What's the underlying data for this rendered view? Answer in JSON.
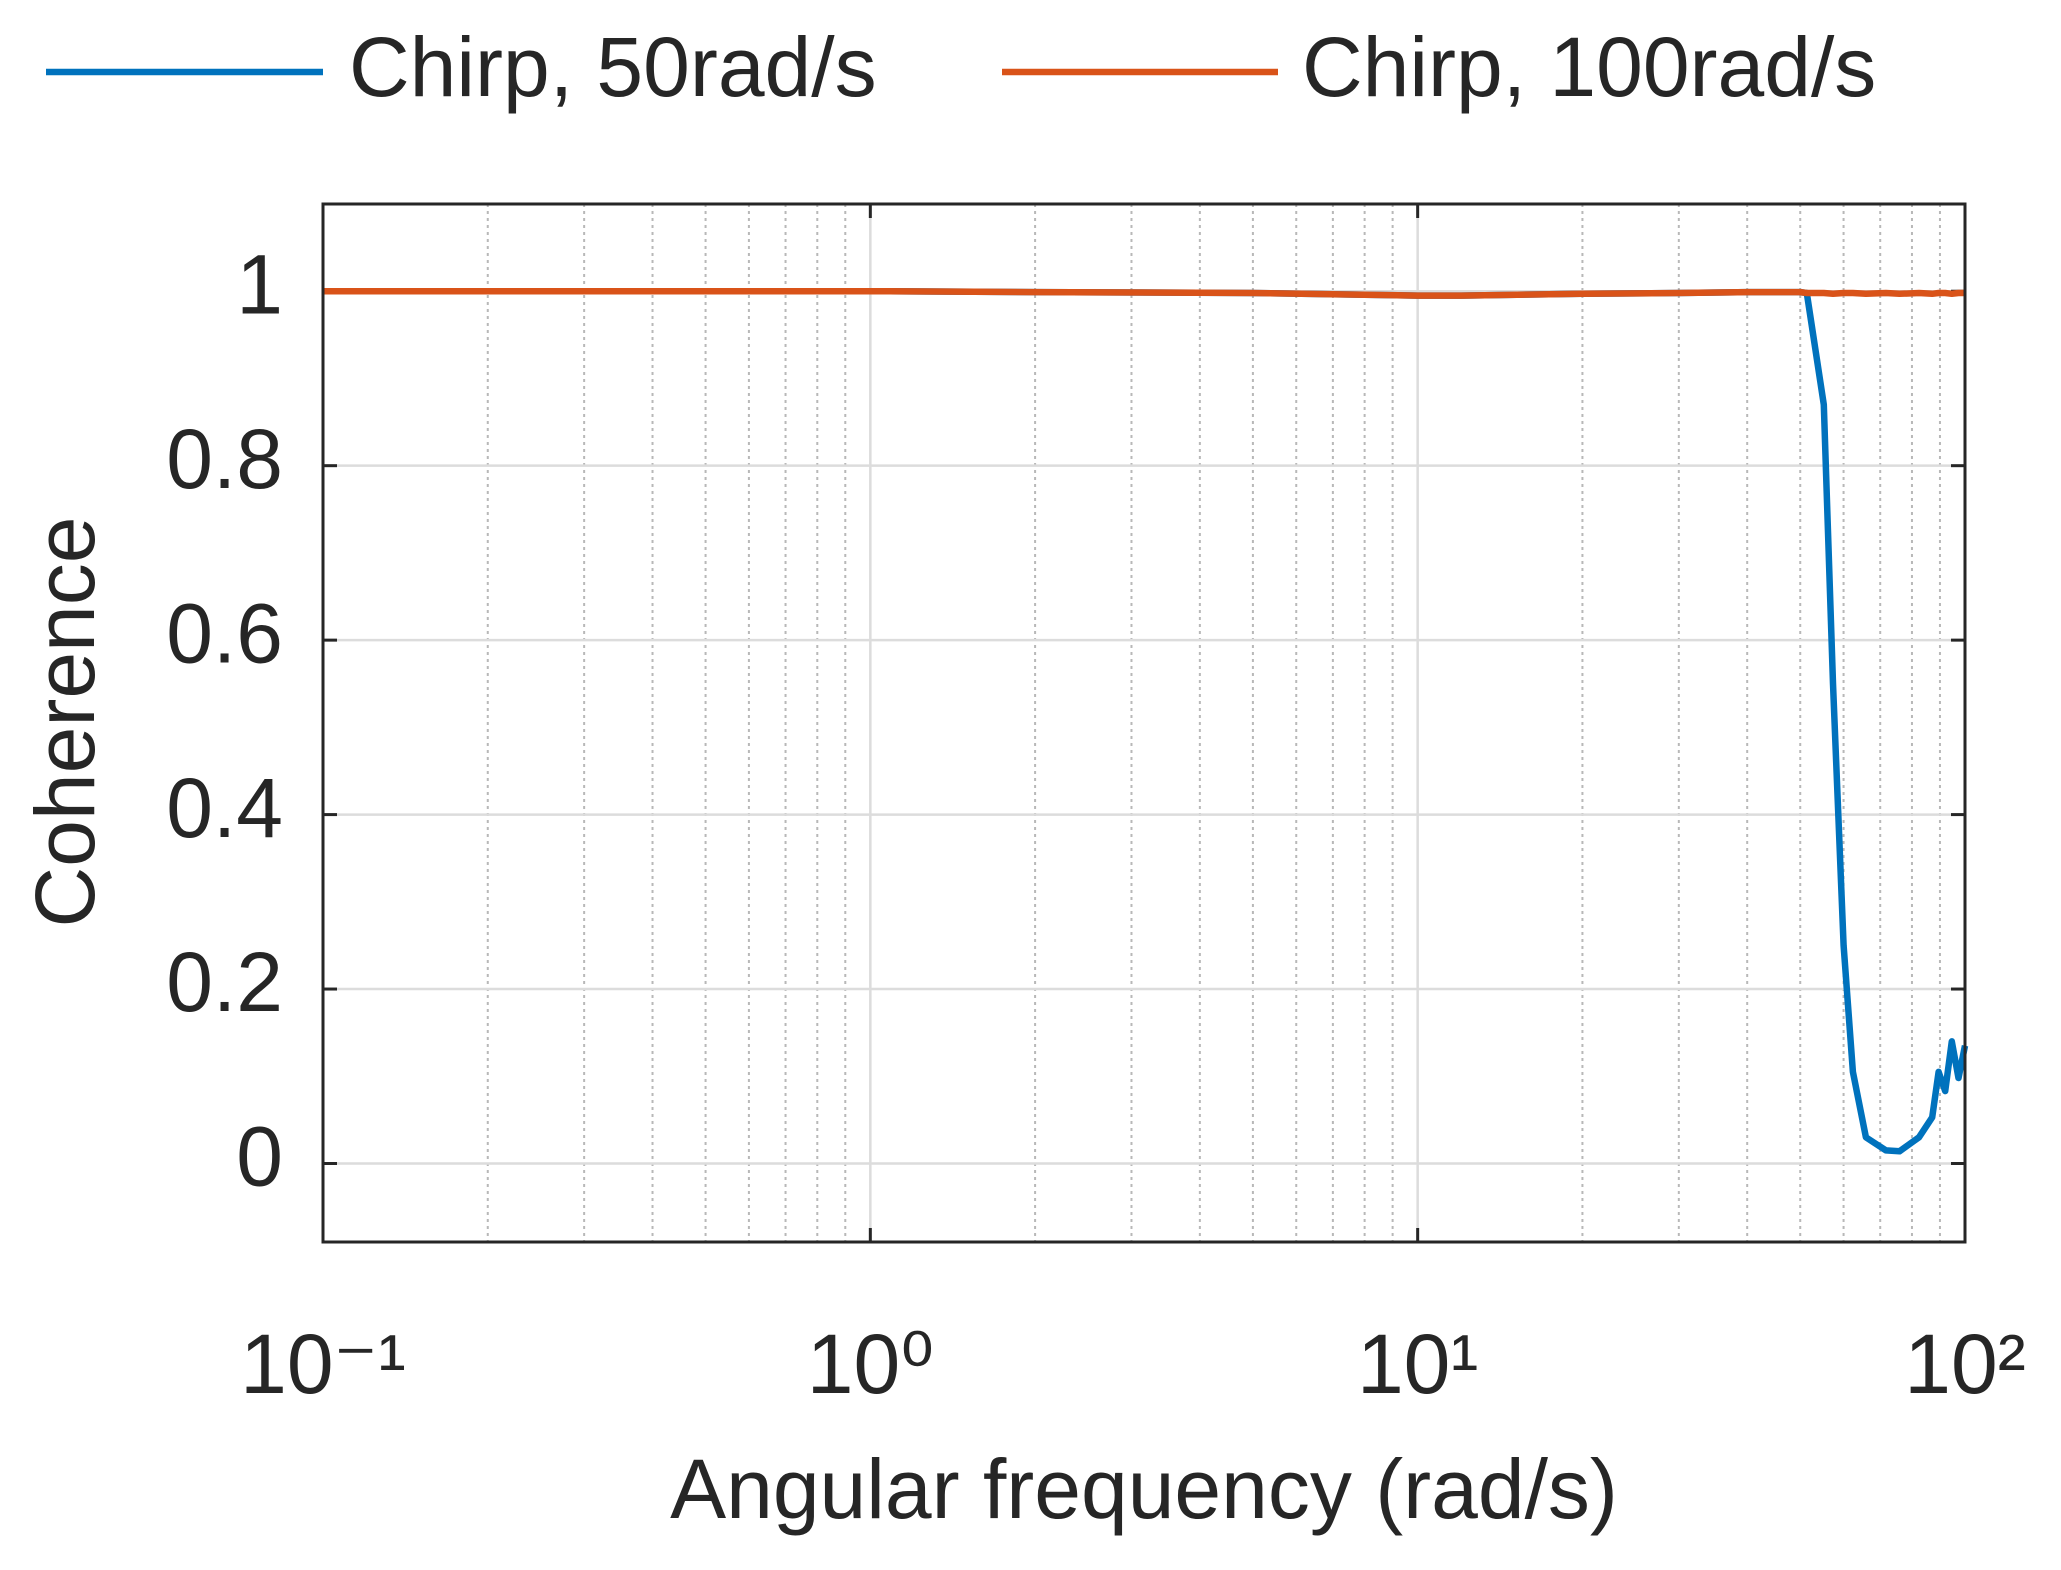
{
  "chart_data": {
    "type": "line",
    "xlabel": "Angular frequency (rad/s)",
    "ylabel": "Coherence",
    "x": [
      0.1,
      0.2,
      0.5,
      1,
      2,
      5,
      8,
      10,
      12,
      20,
      30,
      40,
      50,
      51.4,
      55.2,
      57.4,
      60,
      62.4,
      65.9,
      71.7,
      75.9,
      82.4,
      87.1,
      89.5,
      92,
      94.6,
      97.3,
      100
    ],
    "series": [
      {
        "name": "Chirp, 50rad/s",
        "color": "#0072bd",
        "values": [
          1,
          1,
          1,
          1,
          0.999,
          0.998,
          0.996,
          0.995,
          0.995,
          0.997,
          0.998,
          0.999,
          0.999,
          0.998,
          0.87,
          0.55,
          0.25,
          0.105,
          0.03,
          0.015,
          0.014,
          0.03,
          0.053,
          0.105,
          0.083,
          0.14,
          0.098,
          0.135
        ]
      },
      {
        "name": "Chirp, 100rad/s",
        "color": "#d95319",
        "values": [
          1,
          1,
          1,
          1,
          0.999,
          0.998,
          0.996,
          0.995,
          0.995,
          0.997,
          0.998,
          0.999,
          0.999,
          0.998,
          0.998,
          0.997,
          0.998,
          0.998,
          0.997,
          0.998,
          0.997,
          0.998,
          0.997,
          0.998,
          0.998,
          0.997,
          0.998,
          0.998
        ]
      }
    ],
    "xscale": "log",
    "xlim": [
      0.1,
      100
    ],
    "xticks": [
      {
        "value": 0.1,
        "label": "10⁻¹"
      },
      {
        "value": 1,
        "label": "10⁰"
      },
      {
        "value": 10,
        "label": "10¹"
      },
      {
        "value": 100,
        "label": "10²"
      }
    ],
    "xminorticks": [
      0.2,
      0.3,
      0.4,
      0.5,
      0.6,
      0.7,
      0.8,
      0.9,
      2,
      3,
      4,
      5,
      6,
      7,
      8,
      9,
      20,
      30,
      40,
      50,
      60,
      70,
      80,
      90
    ],
    "ylim": [
      -0.09,
      1.1
    ],
    "yticks": [
      0,
      0.2,
      0.4,
      0.6,
      0.8,
      1
    ],
    "grid": true,
    "legend": "top"
  }
}
